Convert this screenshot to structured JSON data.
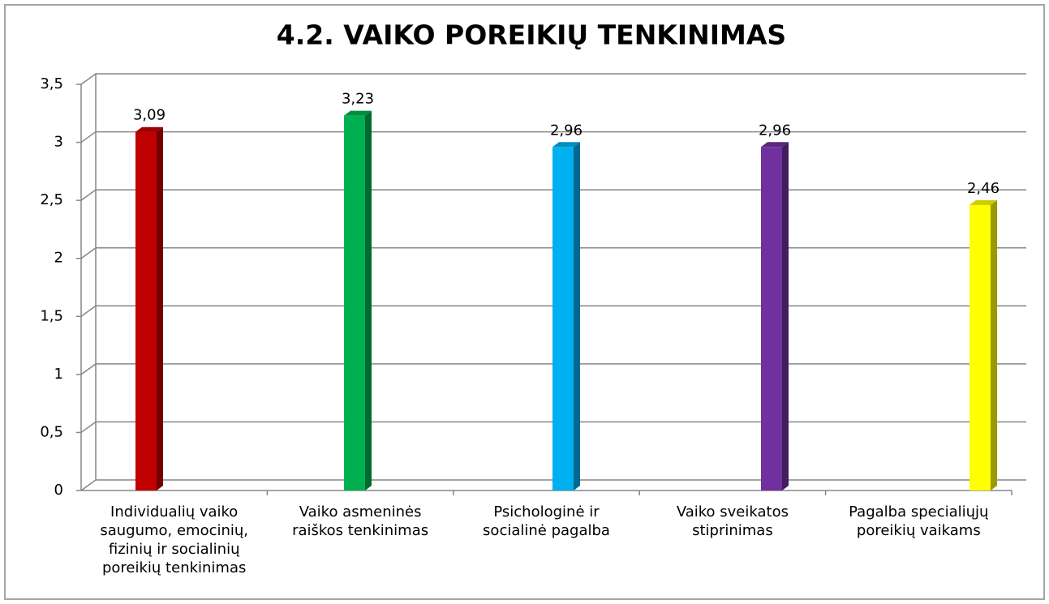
{
  "chart_data": {
    "type": "bar3d",
    "title": "4.2. VAIKO POREIKIŲ TENKINIMAS",
    "categories": [
      "Individualių vaiko saugumo, emocinių, fizinių ir socialinių poreikių tenkinimas",
      "Vaiko asmeninės raiškos tenkinimas",
      "Psichologinė ir socialinė pagalba",
      "Vaiko sveikatos stiprinimas",
      "Pagalba specialiųjų poreikių vaikams"
    ],
    "values": [
      3.09,
      3.23,
      2.96,
      2.96,
      2.46
    ],
    "value_labels": [
      "3,09",
      "3,23",
      "2,96",
      "2,96",
      "2,46"
    ],
    "colors": [
      "#c00000",
      "#00b050",
      "#00b0f0",
      "#7030a0",
      "#ffff00"
    ],
    "ylim": [
      0,
      3.5
    ],
    "yticks": [
      0,
      {
        "value": 0.5,
        "label": "0,5"
      },
      1,
      {
        "value": 1.5,
        "label": "1,5"
      },
      2,
      {
        "value": 2.5,
        "label": "2,5"
      },
      3,
      {
        "value": 3.5,
        "label": "3,5"
      }
    ],
    "grid": true
  }
}
